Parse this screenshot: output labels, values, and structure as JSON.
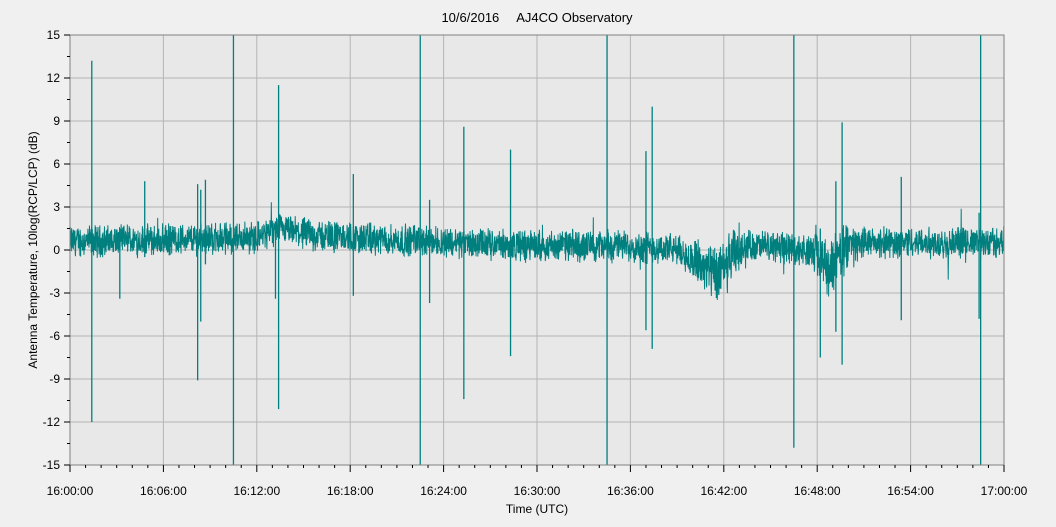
{
  "chart_data": {
    "type": "line",
    "title_date": "10/6/2016",
    "title_site": "AJ4CO Observatory",
    "xlabel": "Time (UTC)",
    "ylabel": "Antenna Temperature, 10log(RCP/LCP) (dB)",
    "x_ticks": [
      "16:00:00",
      "16:06:00",
      "16:12:00",
      "16:18:00",
      "16:24:00",
      "16:30:00",
      "16:36:00",
      "16:42:00",
      "16:48:00",
      "16:54:00",
      "17:00:00"
    ],
    "y_ticks": [
      15,
      12,
      9,
      6,
      3,
      0,
      -3,
      -6,
      -9,
      -12,
      -15
    ],
    "xlim_minutes": [
      0,
      60
    ],
    "ylim": [
      -15,
      15
    ],
    "grid": true,
    "line_color": "#007f7f",
    "plot_background": "#e8e8e8",
    "series": [
      {
        "baseline": [
          {
            "t": 0,
            "v": 0.6
          },
          {
            "t": 6,
            "v": 0.7
          },
          {
            "t": 12,
            "v": 0.9
          },
          {
            "t": 13.5,
            "v": 1.4
          },
          {
            "t": 16,
            "v": 1.0
          },
          {
            "t": 20,
            "v": 0.7
          },
          {
            "t": 24,
            "v": 0.6
          },
          {
            "t": 28,
            "v": 0.3
          },
          {
            "t": 32,
            "v": 0.3
          },
          {
            "t": 36,
            "v": 0.3
          },
          {
            "t": 39,
            "v": 0.0
          },
          {
            "t": 40.5,
            "v": -1.0
          },
          {
            "t": 41.7,
            "v": -2.0
          },
          {
            "t": 42.5,
            "v": -0.5
          },
          {
            "t": 43.5,
            "v": 0.3
          },
          {
            "t": 46,
            "v": 0.2
          },
          {
            "t": 48,
            "v": -0.2
          },
          {
            "t": 48.8,
            "v": -1.5
          },
          {
            "t": 49.4,
            "v": -0.5
          },
          {
            "t": 50,
            "v": 0.5
          },
          {
            "t": 60,
            "v": 0.5
          }
        ],
        "noise_amplitude": 0.9,
        "spikes": [
          {
            "t": 1.4,
            "high": 13.2,
            "low": -12.0
          },
          {
            "t": 3.2,
            "high": 1.5,
            "low": -3.4
          },
          {
            "t": 4.8,
            "high": 4.8,
            "low": -0.5
          },
          {
            "t": 8.2,
            "high": 4.6,
            "low": -9.1
          },
          {
            "t": 8.4,
            "high": 4.2,
            "low": -5.0
          },
          {
            "t": 8.7,
            "high": 4.9,
            "low": -1.0
          },
          {
            "t": 10.5,
            "high": 15,
            "low": -15
          },
          {
            "t": 13.2,
            "high": 2.0,
            "low": -3.4
          },
          {
            "t": 13.4,
            "high": 11.5,
            "low": -11.1
          },
          {
            "t": 18.2,
            "high": 5.3,
            "low": -3.2
          },
          {
            "t": 22.5,
            "high": 15,
            "low": -15
          },
          {
            "t": 23.1,
            "high": 3.5,
            "low": -3.7
          },
          {
            "t": 25.3,
            "high": 8.6,
            "low": -10.4
          },
          {
            "t": 28.3,
            "high": 7.0,
            "low": -7.4
          },
          {
            "t": 34.5,
            "high": 15,
            "low": -15
          },
          {
            "t": 37.0,
            "high": 6.9,
            "low": -5.6
          },
          {
            "t": 37.4,
            "high": 10.0,
            "low": -6.9
          },
          {
            "t": 46.5,
            "high": 15,
            "low": -13.8
          },
          {
            "t": 48.2,
            "high": 1.5,
            "low": -7.5
          },
          {
            "t": 49.2,
            "high": 4.8,
            "low": -5.7
          },
          {
            "t": 49.6,
            "high": 8.9,
            "low": -8.0
          },
          {
            "t": 53.4,
            "high": 5.1,
            "low": -4.9
          },
          {
            "t": 58.5,
            "high": 15,
            "low": -15
          },
          {
            "t": 58.4,
            "high": 2.6,
            "low": -4.8
          }
        ]
      }
    ]
  }
}
